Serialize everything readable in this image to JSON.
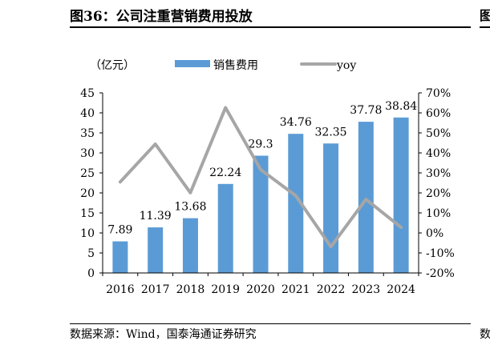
{
  "header": {
    "title": "图36：公司注重营销费用投放",
    "edge_glyph": "图"
  },
  "footer": {
    "source": "数据来源：Wind，国泰海通证券研究",
    "edge_glyph": "数"
  },
  "colors": {
    "bar": "#5B9BD5",
    "line": "#A6A6A6",
    "axis": "#000000"
  },
  "chart_data": {
    "type": "bar",
    "unit_label": "（亿元）",
    "categories": [
      "2016",
      "2017",
      "2018",
      "2019",
      "2020",
      "2021",
      "2022",
      "2023",
      "2024"
    ],
    "series": [
      {
        "name": "销售费用",
        "type": "bar",
        "axis": "left",
        "values": [
          7.89,
          11.39,
          13.68,
          22.24,
          29.3,
          34.76,
          32.35,
          37.78,
          38.84
        ],
        "labels": [
          "7.89",
          "11.39",
          "13.68",
          "22.24",
          "29.3",
          "34.76",
          "32.35",
          "37.78",
          "38.84"
        ]
      },
      {
        "name": "yoy",
        "type": "line",
        "axis": "right",
        "values": [
          25.5,
          44.4,
          20.1,
          62.6,
          31.7,
          18.6,
          -6.9,
          16.8,
          2.8
        ]
      }
    ],
    "ylim_left": [
      0,
      45
    ],
    "yticks_left": [
      "0",
      "5",
      "10",
      "15",
      "20",
      "25",
      "30",
      "35",
      "40",
      "45"
    ],
    "ylim_right": [
      -20,
      70
    ],
    "yticks_right": [
      "-20%",
      "-10%",
      "0%",
      "10%",
      "20%",
      "30%",
      "40%",
      "50%",
      "60%",
      "70%"
    ],
    "legend_position": "top",
    "grid": false
  }
}
